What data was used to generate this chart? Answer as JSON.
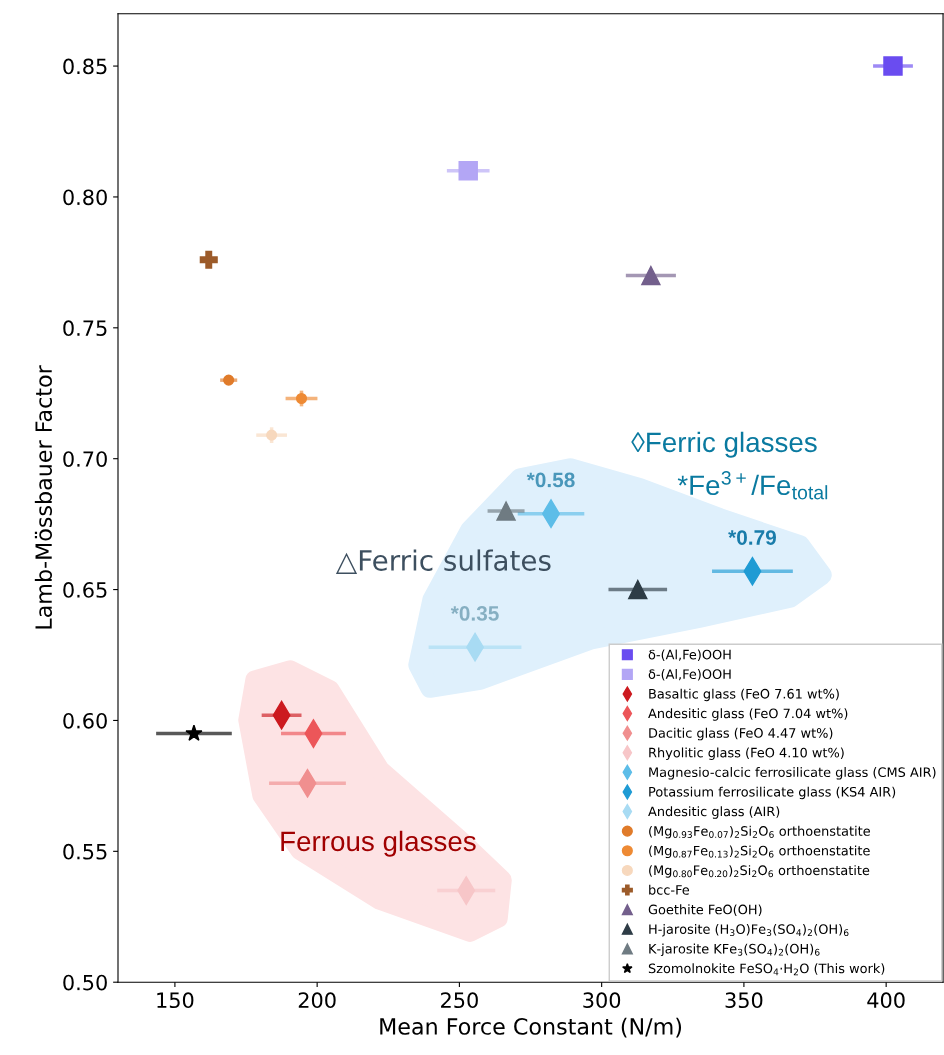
{
  "chart_data": {
    "type": "scatter",
    "xlabel": "Mean Force Constant (N/m)",
    "ylabel": "Lamb-Mössbauer Factor",
    "xlim": [
      130,
      420
    ],
    "xticks": [
      150,
      200,
      250,
      300,
      350,
      400
    ],
    "ylim": [
      0.5,
      0.87
    ],
    "yticks": [
      {
        "value": 0.5,
        "label": "0.50"
      },
      {
        "value": 0.55,
        "label": "0.55"
      },
      {
        "value": 0.6,
        "label": "0.60"
      },
      {
        "value": 0.65,
        "label": "0.65"
      },
      {
        "value": 0.7,
        "label": "0.70"
      },
      {
        "value": 0.75,
        "label": "0.75"
      },
      {
        "value": 0.8,
        "label": "0.80"
      },
      {
        "value": 0.85,
        "label": "0.85"
      }
    ],
    "grid": false,
    "legend": "bottom right",
    "series": [
      {
        "name": "δ-(Al,Fe)OOH",
        "color": "#6a4cf0",
        "marker": "square",
        "x": [
          402.4
        ],
        "values": [
          0.85
        ],
        "xerrors": [
          7
        ]
      },
      {
        "name": "δ-(Al,Fe)OOH",
        "color": "#b3a6f5",
        "marker": "square",
        "x": [
          253.1
        ],
        "values": [
          0.81
        ],
        "xerrors": [
          7.5
        ]
      },
      {
        "name": "Basaltic glass (FeO 7.61 wt%)",
        "color": "#cc1a1f",
        "marker": "diamond",
        "x": [
          187.5
        ],
        "values": [
          0.602
        ],
        "xerrors": [
          7
        ]
      },
      {
        "name": "Andesitic glass (FeO 7.04 wt%)",
        "color": "#ec5659",
        "marker": "diamond",
        "x": [
          198.7
        ],
        "values": [
          0.595
        ],
        "xerrors": [
          11.4
        ]
      },
      {
        "name": "Dacitic glass (FeO 4.47 wt%)",
        "color": "#f08f8f",
        "marker": "diamond",
        "x": [
          196.6
        ],
        "values": [
          0.576
        ],
        "xerrors": [
          13.5
        ]
      },
      {
        "name": "Rhyolitic glass (FeO 4.10 wt%)",
        "color": "#f7c6c8",
        "marker": "diamond",
        "x": [
          252.4
        ],
        "values": [
          0.535
        ],
        "xerrors": [
          10.2
        ]
      },
      {
        "name": "Magnesio-calcic ferrosilicate glass (CMS AIR)",
        "color": "#5dbde8",
        "marker": "diamond",
        "x": [
          282.2
        ],
        "values": [
          0.679
        ],
        "xerrors": [
          11.7
        ]
      },
      {
        "name": "Potassium ferrosilicate glass (KS4 AIR)",
        "color": "#1f9bd4",
        "marker": "diamond",
        "x": [
          353.0
        ],
        "values": [
          0.657
        ],
        "xerrors": [
          14.2
        ]
      },
      {
        "name": "Andesitic glass (AIR)",
        "color": "#a8dbf3",
        "marker": "diamond",
        "x": [
          255.5
        ],
        "values": [
          0.628
        ],
        "xerrors": [
          16.3
        ]
      },
      {
        "name": "(Mg$_{0.93}$Fe$_{0.07}$)$_{2}$Si$_{2}$O$_{6}$ orthoenstatite",
        "color": "#e07b2a",
        "marker": "circle",
        "x": [
          168.9
        ],
        "values": [
          0.73
        ],
        "xerrors": [
          3
        ]
      },
      {
        "name": "(Mg$_{0.87}$Fe$_{0.13}$)$_{2}$Si$_{2}$O$_{6}$ orthoenstatite",
        "color": "#ee8a34",
        "marker": "circle",
        "x": [
          194.5
        ],
        "values": [
          0.723
        ],
        "xerrors": [
          5.6
        ],
        "errors": [
          0.003
        ]
      },
      {
        "name": "(Mg$_{0.80}$Fe$_{0.20}$)$_{2}$Si$_{2}$O$_{6}$ orthoenstatite",
        "color": "#f7d8bd",
        "marker": "circle",
        "x": [
          184.0
        ],
        "values": [
          0.709
        ],
        "xerrors": [
          5.4
        ],
        "errors": [
          0.003
        ]
      },
      {
        "name": "bcc-Fe",
        "color": "#9c5b2a",
        "marker": "cross",
        "x": [
          161.9
        ],
        "values": [
          0.776
        ]
      },
      {
        "name": "Goethite FeO(OH)",
        "color": "#735f8c",
        "marker": "triangle",
        "x": [
          317.3
        ],
        "values": [
          0.77
        ],
        "xerrors": [
          8.8
        ]
      },
      {
        "name": "H-jarosite (H$_{3}$O)Fe$_{3}$(SO$_{4}$)$_{2}$(OH)$_{6}$",
        "color": "#2e3c46",
        "marker": "triangle",
        "x": [
          312.7
        ],
        "values": [
          0.65
        ],
        "xerrors": [
          10.3
        ]
      },
      {
        "name": "K-jarosite KFe$_{3}$(SO$_{4}$)$_{2}$(OH)$_{6}$",
        "color": "#6f7b82",
        "marker": "triangle",
        "x": [
          266.4
        ],
        "values": [
          0.68
        ],
        "xerrors": [
          6.5
        ]
      },
      {
        "name": "Szomolnokite FeSO$_{4}$·H$_{2}$O (This work)",
        "color": "#000000",
        "marker": "star",
        "x": [
          156.7
        ],
        "values": [
          0.595
        ],
        "xerrors": [
          13.3
        ]
      }
    ],
    "annotations": [
      {
        "text": "*0.58",
        "x": 282.2,
        "y": 0.679
      },
      {
        "text": "*0.79",
        "x": 353.0,
        "y": 0.657
      },
      {
        "text": "*0.35",
        "x": 255.5,
        "y": 0.628
      },
      "◊Ferric glasses",
      "*Fe$^{3+}$/Fe$_{total}$",
      "△Ferric sulfates",
      "Ferrous glasses"
    ]
  }
}
